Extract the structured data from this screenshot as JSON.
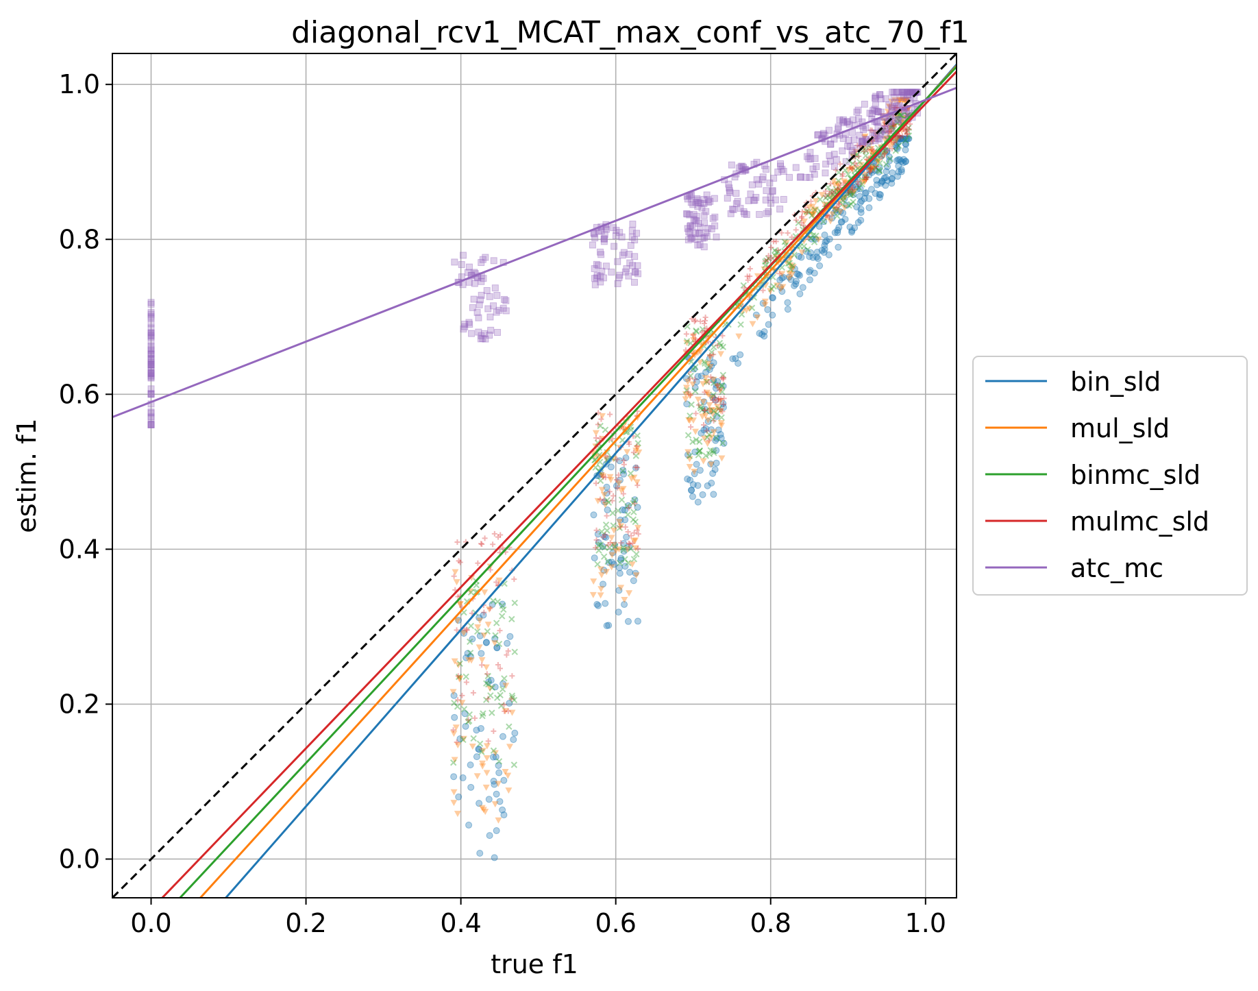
{
  "chart_data": {
    "type": "scatter",
    "title": "diagonal_rcv1_MCAT_max_conf_vs_atc_70_f1",
    "xlabel": "true f1",
    "ylabel": "estim. f1",
    "xlim": [
      -0.05,
      1.04
    ],
    "ylim": [
      -0.05,
      1.04
    ],
    "grid": true,
    "legend_placement": "outside-right",
    "x_ticks": [
      0.0,
      0.2,
      0.4,
      0.6,
      0.8,
      1.0
    ],
    "y_ticks": [
      0.0,
      0.2,
      0.4,
      0.6,
      0.8,
      1.0
    ],
    "x_tick_labels": [
      "0.0",
      "0.2",
      "0.4",
      "0.6",
      "0.8",
      "1.0"
    ],
    "y_tick_labels": [
      "0.0",
      "0.2",
      "0.4",
      "0.6",
      "0.8",
      "1.0"
    ],
    "reference_line": {
      "style": "dashed",
      "color": "#000000",
      "slope": 1.0,
      "intercept": 0.0
    },
    "series": [
      {
        "name": "bin_sld",
        "color": "#1f77b4",
        "marker": "circle",
        "fit": {
          "slope": 1.14,
          "intercept": -0.16
        },
        "clusters": [
          {
            "x": [
              0.39,
              0.47
            ],
            "y": [
              0.0,
              0.33
            ]
          },
          {
            "x": [
              0.57,
              0.63
            ],
            "y": [
              0.3,
              0.52
            ]
          },
          {
            "x": [
              0.69,
              0.74
            ],
            "y": [
              0.46,
              0.65
            ]
          },
          {
            "x": [
              0.74,
              0.98
            ],
            "y": [
              0.64,
              0.93
            ]
          }
        ]
      },
      {
        "name": "mul_sld",
        "color": "#ff7f0e",
        "marker": "triangle",
        "fit": {
          "slope": 1.1,
          "intercept": -0.12
        },
        "clusters": [
          {
            "x": [
              0.39,
              0.47
            ],
            "y": [
              0.05,
              0.4
            ]
          },
          {
            "x": [
              0.57,
              0.63
            ],
            "y": [
              0.33,
              0.58
            ]
          },
          {
            "x": [
              0.69,
              0.74
            ],
            "y": [
              0.5,
              0.68
            ]
          },
          {
            "x": [
              0.74,
              0.98
            ],
            "y": [
              0.67,
              0.98
            ]
          }
        ]
      },
      {
        "name": "binmc_sld",
        "color": "#2ca02c",
        "marker": "x",
        "fit": {
          "slope": 1.07,
          "intercept": -0.09
        },
        "clusters": [
          {
            "x": [
              0.39,
              0.47
            ],
            "y": [
              0.12,
              0.38
            ]
          },
          {
            "x": [
              0.57,
              0.63
            ],
            "y": [
              0.38,
              0.56
            ]
          },
          {
            "x": [
              0.69,
              0.74
            ],
            "y": [
              0.52,
              0.69
            ]
          },
          {
            "x": [
              0.74,
              0.98
            ],
            "y": [
              0.69,
              0.96
            ]
          }
        ]
      },
      {
        "name": "mulmc_sld",
        "color": "#d62728",
        "marker": "plus",
        "fit": {
          "slope": 1.04,
          "intercept": -0.065
        },
        "clusters": [
          {
            "x": [
              0.39,
              0.47
            ],
            "y": [
              0.15,
              0.42
            ]
          },
          {
            "x": [
              0.57,
              0.63
            ],
            "y": [
              0.4,
              0.58
            ]
          },
          {
            "x": [
              0.69,
              0.74
            ],
            "y": [
              0.54,
              0.7
            ]
          },
          {
            "x": [
              0.74,
              0.98
            ],
            "y": [
              0.7,
              0.97
            ]
          }
        ]
      },
      {
        "name": "atc_mc",
        "color": "#9467bd",
        "marker": "square",
        "fit": {
          "slope": 0.39,
          "intercept": 0.59
        },
        "clusters": [
          {
            "x": [
              0.0,
              0.0
            ],
            "y": [
              0.56,
              0.72
            ]
          },
          {
            "x": [
              0.39,
              0.46
            ],
            "y": [
              0.67,
              0.78
            ]
          },
          {
            "x": [
              0.57,
              0.63
            ],
            "y": [
              0.74,
              0.82
            ]
          },
          {
            "x": [
              0.69,
              0.73
            ],
            "y": [
              0.79,
              0.86
            ]
          },
          {
            "x": [
              0.74,
              0.82
            ],
            "y": [
              0.83,
              0.9
            ]
          },
          {
            "x": [
              0.82,
              0.99
            ],
            "y": [
              0.88,
              0.99
            ]
          }
        ]
      }
    ]
  }
}
